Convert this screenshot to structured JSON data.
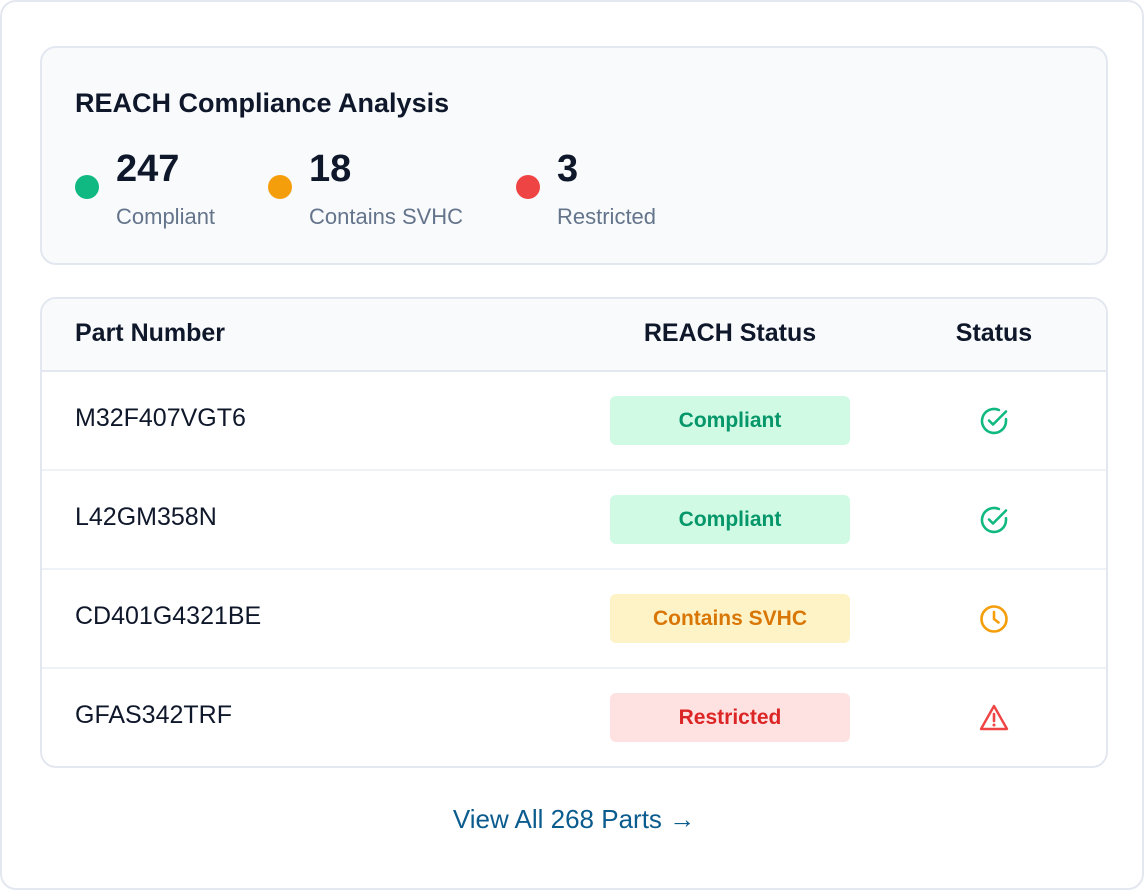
{
  "summary": {
    "title": "REACH Compliance Analysis",
    "stats": [
      {
        "value": "247",
        "label": "Compliant",
        "color": "#10b981"
      },
      {
        "value": "18",
        "label": "Contains SVHC",
        "color": "#f59e0b"
      },
      {
        "value": "3",
        "label": "Restricted",
        "color": "#ef4444"
      }
    ]
  },
  "table": {
    "columns": [
      "Part Number",
      "REACH Status",
      "Status"
    ],
    "rows": [
      {
        "part": "M32F407VGT6",
        "reach_status": "Compliant",
        "status_icon": "check-circle-icon"
      },
      {
        "part": "L42GM358N",
        "reach_status": "Compliant",
        "status_icon": "check-circle-icon"
      },
      {
        "part": "CD401G4321BE",
        "reach_status": "Contains SVHC",
        "status_icon": "clock-icon"
      },
      {
        "part": "GFAS342TRF",
        "reach_status": "Restricted",
        "status_icon": "warning-triangle-icon"
      }
    ]
  },
  "footer": {
    "view_all_label": "View All 268 Parts →"
  },
  "colors": {
    "compliant": "#059669",
    "svhc": "#f59e0b",
    "restricted": "#dc2626",
    "link": "#0b5c8e"
  }
}
